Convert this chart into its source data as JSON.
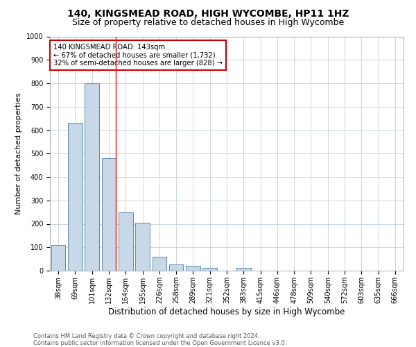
{
  "title": "140, KINGSMEAD ROAD, HIGH WYCOMBE, HP11 1HZ",
  "subtitle": "Size of property relative to detached houses in High Wycombe",
  "xlabel": "Distribution of detached houses by size in High Wycombe",
  "ylabel": "Number of detached properties",
  "categories": [
    "38sqm",
    "69sqm",
    "101sqm",
    "132sqm",
    "164sqm",
    "195sqm",
    "226sqm",
    "258sqm",
    "289sqm",
    "321sqm",
    "352sqm",
    "383sqm",
    "415sqm",
    "446sqm",
    "478sqm",
    "509sqm",
    "540sqm",
    "572sqm",
    "603sqm",
    "635sqm",
    "666sqm"
  ],
  "values": [
    110,
    630,
    800,
    480,
    250,
    205,
    60,
    28,
    20,
    13,
    0,
    12,
    0,
    0,
    0,
    0,
    0,
    0,
    0,
    0,
    0
  ],
  "bar_color": "#c8d8e8",
  "bar_edge_color": "#5a8ab0",
  "vline_x_index": 3,
  "annotation_text": "140 KINGSMEAD ROAD: 143sqm\n← 67% of detached houses are smaller (1,732)\n32% of semi-detached houses are larger (828) →",
  "annotation_box_color": "#ffffff",
  "annotation_box_edge_color": "#cc0000",
  "ylim": [
    0,
    1000
  ],
  "yticks": [
    0,
    100,
    200,
    300,
    400,
    500,
    600,
    700,
    800,
    900,
    1000
  ],
  "footer_line1": "Contains HM Land Registry data © Crown copyright and database right 2024.",
  "footer_line2": "Contains public sector information licensed under the Open Government Licence v3.0.",
  "bg_color": "#ffffff",
  "grid_color": "#c0d0e0",
  "title_fontsize": 10,
  "subtitle_fontsize": 9,
  "axis_label_fontsize": 8.5,
  "tick_fontsize": 7,
  "ylabel_fontsize": 8
}
